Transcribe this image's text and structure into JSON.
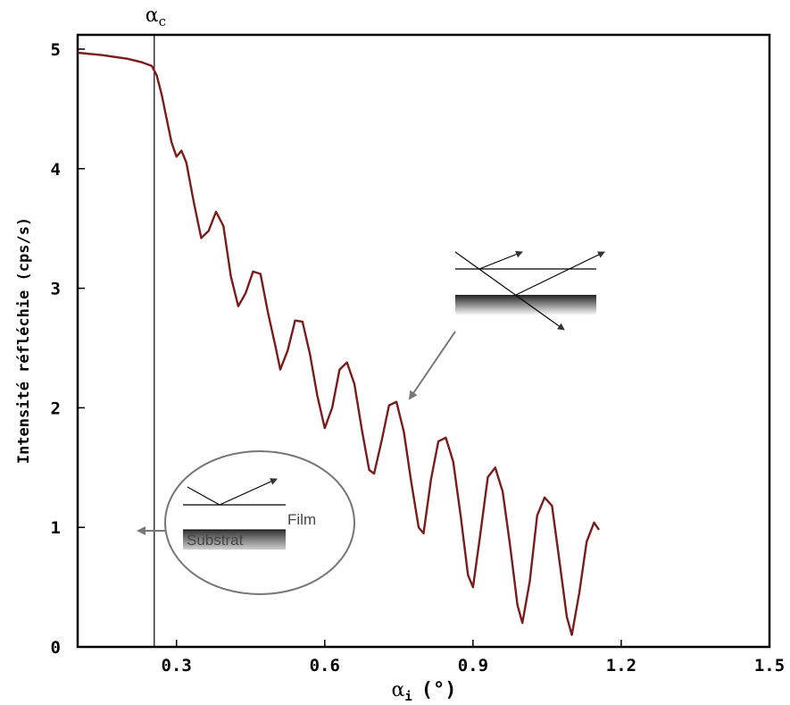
{
  "chart_data": {
    "type": "line",
    "xlabel_main": "α",
    "xlabel_sub": "i",
    "xlabel_unit": "(°)",
    "ylabel": "Intensité réfléchie (cps/s)",
    "xlim": [
      0.1,
      1.5
    ],
    "ylim": [
      0,
      5.1
    ],
    "x_ticks": [
      "0.3",
      "0.6",
      "0.9",
      "1.2",
      "1.5"
    ],
    "y_ticks": [
      "0",
      "1",
      "2",
      "3",
      "4",
      "5"
    ],
    "grid": false,
    "critical_angle": {
      "x": 0.255,
      "label_main": "α",
      "label_sub": "c"
    },
    "series": [
      {
        "color": "#7a1c1c",
        "x": [
          0.1,
          0.15,
          0.2,
          0.23,
          0.25,
          0.26,
          0.27,
          0.28,
          0.29,
          0.3,
          0.31,
          0.32,
          0.335,
          0.35,
          0.365,
          0.38,
          0.395,
          0.41,
          0.425,
          0.44,
          0.455,
          0.47,
          0.485,
          0.5,
          0.51,
          0.525,
          0.54,
          0.555,
          0.57,
          0.585,
          0.6,
          0.615,
          0.63,
          0.645,
          0.66,
          0.675,
          0.69,
          0.7,
          0.715,
          0.73,
          0.745,
          0.76,
          0.775,
          0.79,
          0.8,
          0.815,
          0.83,
          0.845,
          0.86,
          0.875,
          0.89,
          0.9,
          0.915,
          0.93,
          0.945,
          0.96,
          0.975,
          0.99,
          1.0,
          1.015,
          1.03,
          1.045,
          1.06,
          1.075,
          1.09,
          1.1,
          1.115,
          1.13,
          1.145,
          1.155
        ],
        "y": [
          4.97,
          4.95,
          4.92,
          4.89,
          4.86,
          4.78,
          4.62,
          4.42,
          4.22,
          4.1,
          4.15,
          4.05,
          3.72,
          3.42,
          3.48,
          3.64,
          3.52,
          3.1,
          2.85,
          2.96,
          3.14,
          3.12,
          2.8,
          2.52,
          2.32,
          2.48,
          2.73,
          2.72,
          2.45,
          2.1,
          1.83,
          2.0,
          2.32,
          2.38,
          2.2,
          1.82,
          1.48,
          1.45,
          1.72,
          2.02,
          2.05,
          1.8,
          1.38,
          1.0,
          0.95,
          1.4,
          1.72,
          1.75,
          1.55,
          1.1,
          0.6,
          0.5,
          0.95,
          1.42,
          1.5,
          1.3,
          0.85,
          0.35,
          0.2,
          0.55,
          1.1,
          1.25,
          1.18,
          0.72,
          0.25,
          0.1,
          0.45,
          0.88,
          1.04,
          0.98
        ]
      }
    ]
  },
  "annotations": {
    "film_label": "Film",
    "substrate_label": "Substrat"
  }
}
